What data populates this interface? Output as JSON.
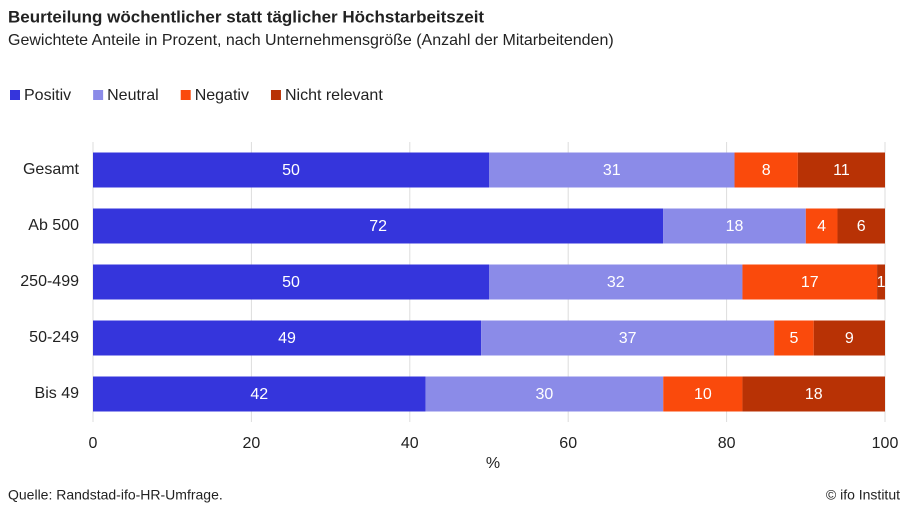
{
  "chart_data": {
    "type": "stacked_barh",
    "title": "Beurteilung wöchentlicher statt täglicher Höchstarbeitszeit",
    "subtitle": "Gewichtete Anteile in Prozent, nach Unternehmensgröße (Anzahl der Mitarbeitenden)",
    "categories": [
      "Gesamt",
      "Ab 500",
      "250-499",
      "50-249",
      "Bis 49"
    ],
    "series": [
      {
        "name": "Positiv",
        "color": "#3535dc",
        "values": [
          50,
          72,
          50,
          49,
          42
        ]
      },
      {
        "name": "Neutral",
        "color": "#8b8be8",
        "values": [
          31,
          18,
          32,
          37,
          30
        ]
      },
      {
        "name": "Negativ",
        "color": "#fa4a0c",
        "values": [
          8,
          4,
          17,
          5,
          10
        ]
      },
      {
        "name": "Nicht relevant",
        "color": "#b83205",
        "values": [
          11,
          6,
          1,
          9,
          18
        ]
      }
    ],
    "xlim": [
      0,
      100
    ],
    "xticks": [
      0,
      20,
      40,
      60,
      80,
      100
    ],
    "xlabel": "%",
    "grid": true,
    "legend": "top-left",
    "source": "Quelle: Randstad-ifo-HR-Umfrage.",
    "credit": "© ifo Institut"
  }
}
